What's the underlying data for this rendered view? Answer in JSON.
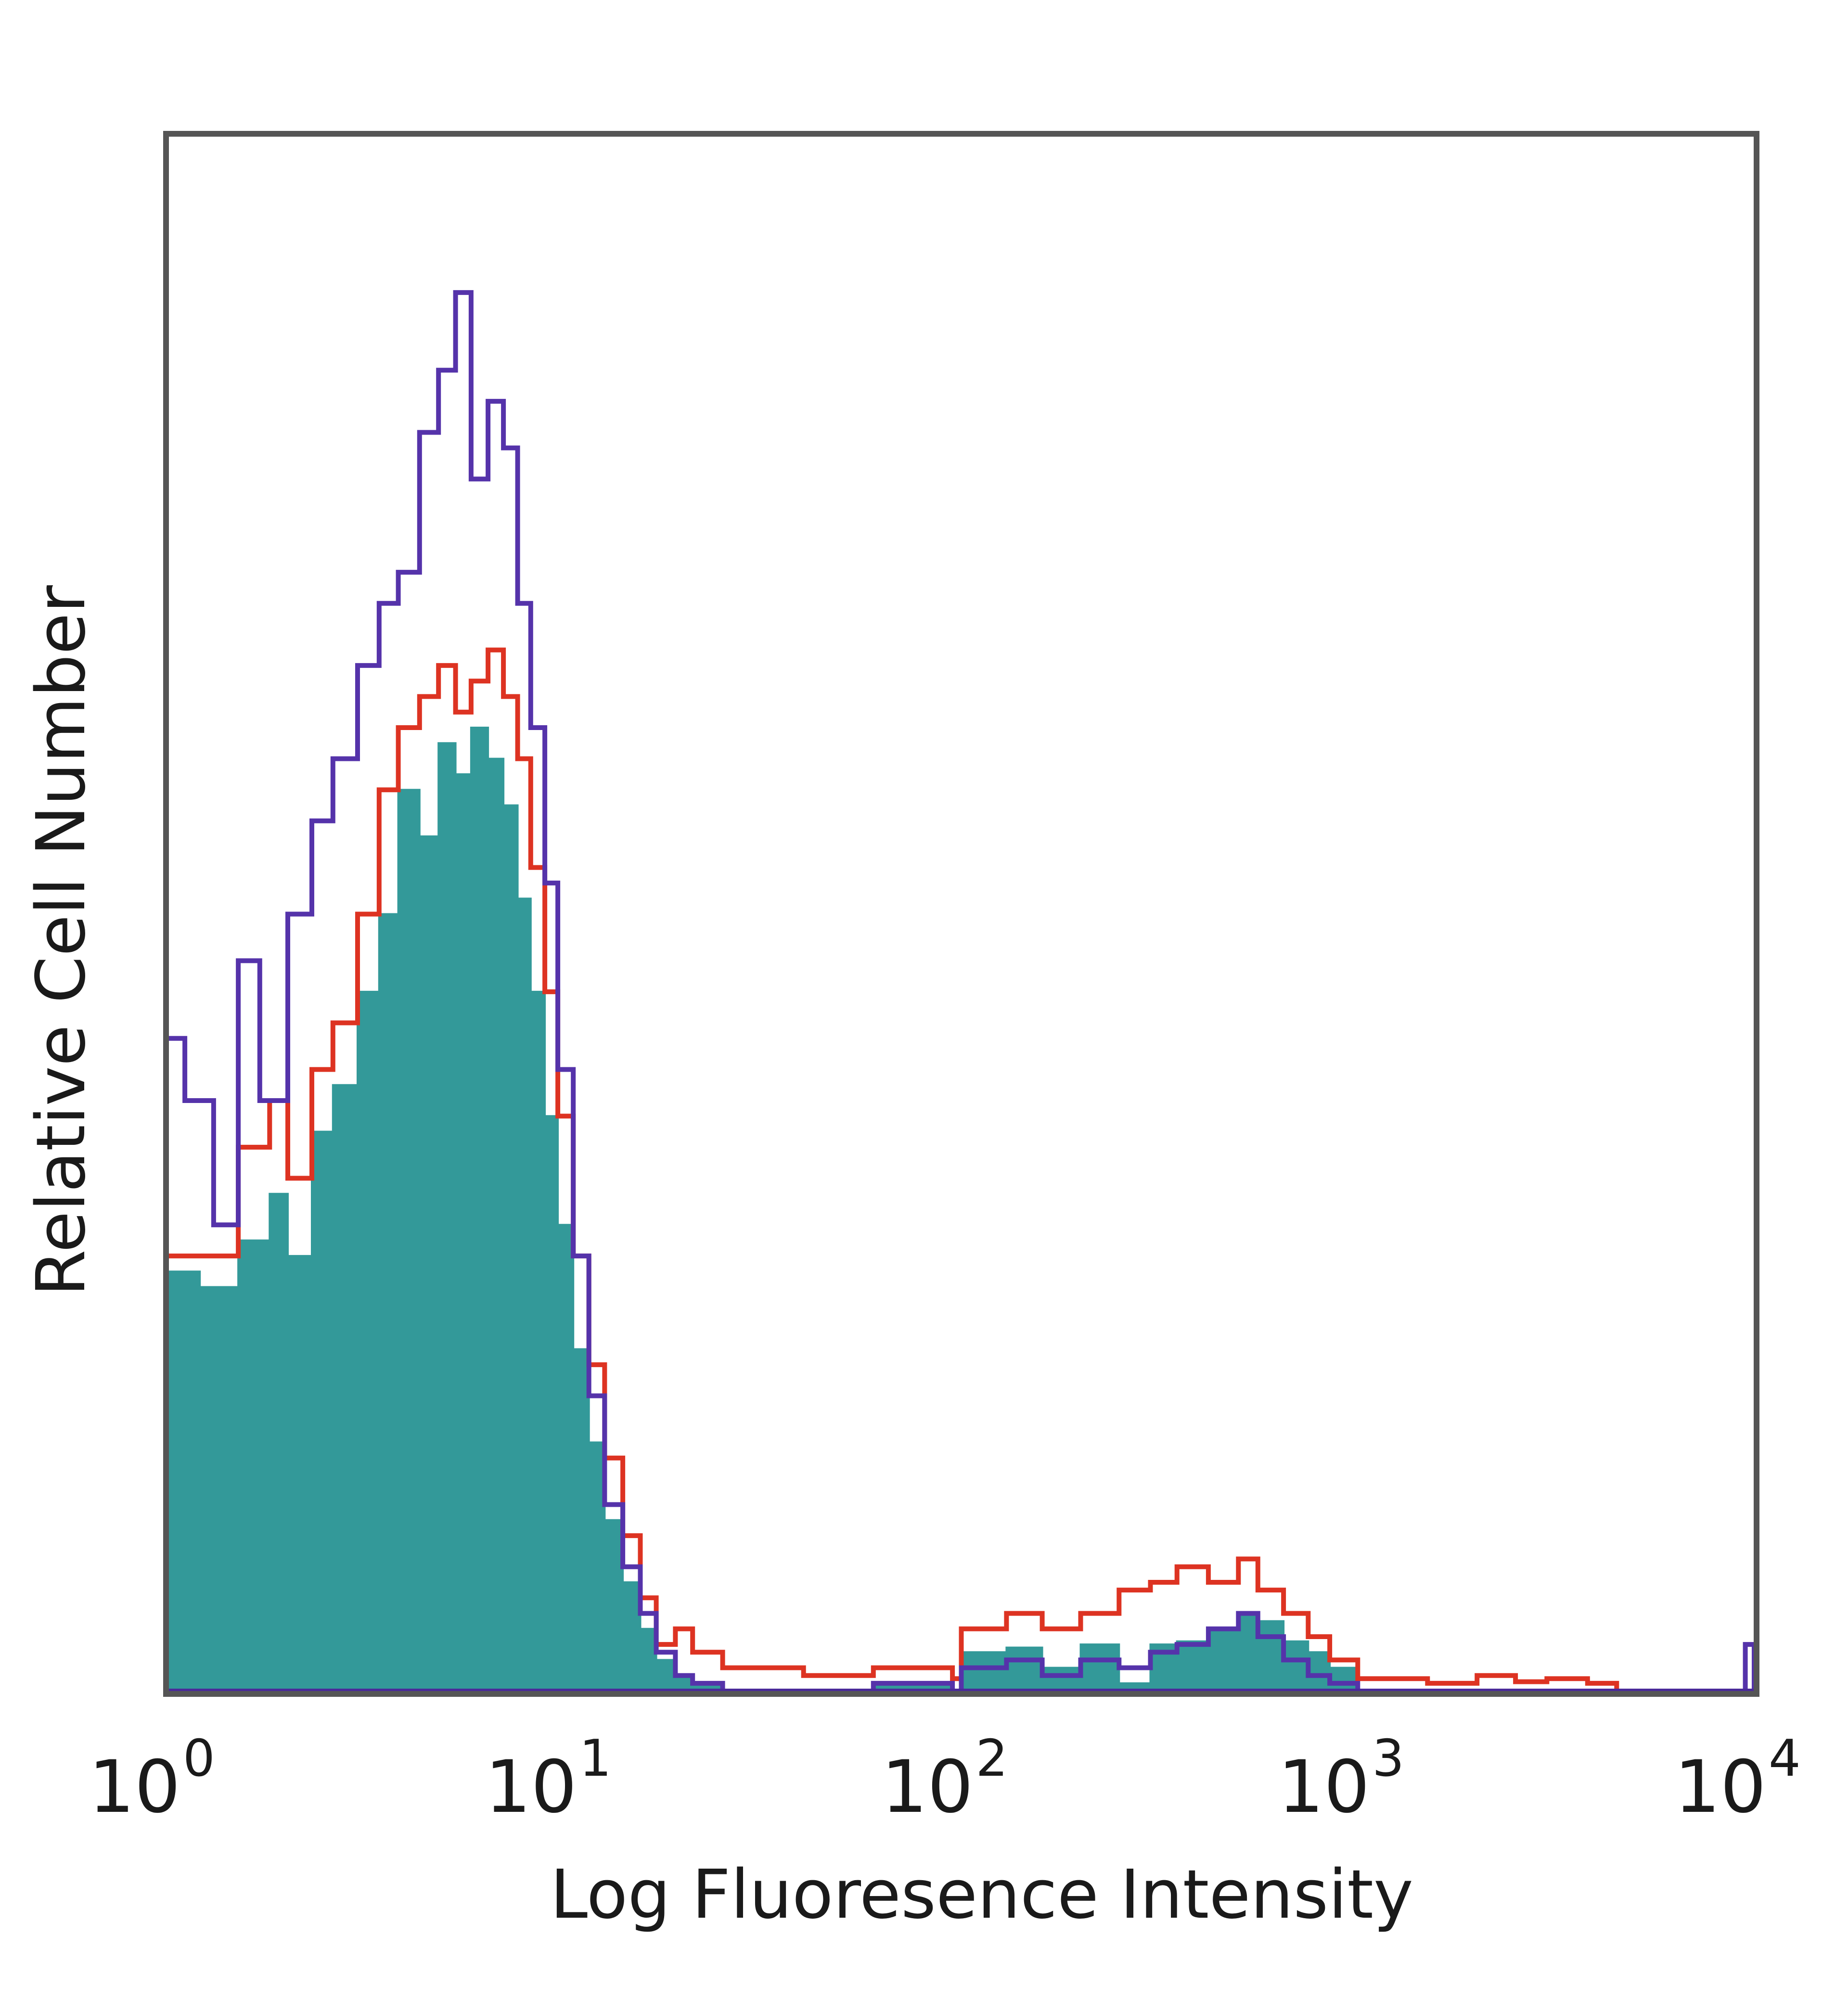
{
  "chart_data": {
    "type": "area",
    "title": "",
    "xlabel": "Log Fluoresence Intensity",
    "ylabel": "Relative Cell Number",
    "x_scale": "log",
    "xlim": [
      1,
      10000
    ],
    "ylim": [
      0,
      100
    ],
    "grid": false,
    "legend": "none",
    "x_ticks": [
      {
        "base": "10",
        "exp": "0",
        "value": 1
      },
      {
        "base": "10",
        "exp": "1",
        "value": 10
      },
      {
        "base": "10",
        "exp": "2",
        "value": 100
      },
      {
        "base": "10",
        "exp": "3",
        "value": 1000
      },
      {
        "base": "10",
        "exp": "4",
        "value": 10000
      }
    ],
    "series": [
      {
        "style": "filled",
        "color": "#339999",
        "x": [
          1.0,
          1.2,
          1.5,
          1.8,
          2.0,
          2.3,
          2.6,
          3.0,
          3.4,
          3.8,
          4.3,
          4.8,
          5.3,
          5.8,
          6.4,
          7.0,
          7.6,
          8.2,
          8.9,
          9.6,
          10.5,
          11.5,
          12.6,
          14,
          15.5,
          17,
          19,
          21,
          25,
          40,
          60,
          95,
          100,
          130,
          160,
          200,
          250,
          300,
          350,
          420,
          500,
          560,
          650,
          750,
          850,
          1000,
          2000,
          10000
        ],
        "y": [
          27,
          26,
          29,
          32,
          28,
          36,
          39,
          45,
          50,
          58,
          55,
          61,
          59,
          62,
          60,
          57,
          51,
          45,
          37,
          30,
          22,
          16,
          11,
          7,
          4,
          2,
          1,
          0.3,
          0,
          0,
          0.5,
          0,
          2.5,
          2.8,
          1.5,
          3,
          0.5,
          3,
          3.2,
          4,
          5,
          4.5,
          3.2,
          2.5,
          1.5,
          0,
          0,
          0
        ]
      },
      {
        "style": "outline",
        "color": "#dd3322",
        "x": [
          1.0,
          1.2,
          1.5,
          1.8,
          2.0,
          2.3,
          2.6,
          3.0,
          3.4,
          3.8,
          4.3,
          4.8,
          5.3,
          5.8,
          6.4,
          7.0,
          7.6,
          8.2,
          8.9,
          9.6,
          10.5,
          11.5,
          12.6,
          14,
          15.5,
          17,
          19,
          21,
          25,
          40,
          60,
          95,
          100,
          130,
          160,
          200,
          250,
          300,
          350,
          420,
          500,
          560,
          650,
          750,
          850,
          1000,
          1500,
          2000,
          2500,
          3000,
          3800,
          4500,
          10000
        ],
        "y": [
          28,
          28,
          35,
          38,
          33,
          40,
          43,
          50,
          58,
          62,
          64,
          66,
          63,
          65,
          67,
          64,
          60,
          53,
          45,
          37,
          28,
          21,
          15,
          10,
          6,
          3,
          4,
          2.5,
          1.5,
          1,
          1.5,
          0.8,
          4,
          5,
          4,
          5,
          6.5,
          7,
          8,
          7,
          8.5,
          6.5,
          5,
          3.5,
          2,
          0.8,
          0.5,
          1,
          0.6,
          0.8,
          0.5,
          0,
          0
        ]
      },
      {
        "style": "outline",
        "color": "#5533aa",
        "x": [
          1.0,
          1.1,
          1.3,
          1.5,
          1.7,
          2.0,
          2.3,
          2.6,
          3.0,
          3.4,
          3.8,
          4.3,
          4.8,
          5.3,
          5.8,
          6.4,
          7.0,
          7.6,
          8.2,
          8.9,
          9.6,
          10.5,
          11.5,
          12.6,
          14,
          15.5,
          17,
          19,
          21,
          25,
          40,
          60,
          95,
          100,
          130,
          160,
          200,
          250,
          300,
          350,
          420,
          500,
          560,
          650,
          750,
          850,
          1000,
          9000,
          9500,
          10000
        ],
        "y": [
          42,
          38,
          30,
          47,
          38,
          50,
          56,
          60,
          66,
          70,
          72,
          81,
          85,
          90,
          78,
          83,
          80,
          70,
          62,
          52,
          40,
          28,
          19,
          12,
          8,
          5,
          2.5,
          1,
          0.5,
          0,
          0,
          0.5,
          0,
          1.5,
          2,
          1,
          2,
          1.5,
          2.5,
          3,
          4,
          5,
          3.5,
          2,
          1,
          0.5,
          0,
          0,
          3,
          0
        ]
      }
    ]
  }
}
